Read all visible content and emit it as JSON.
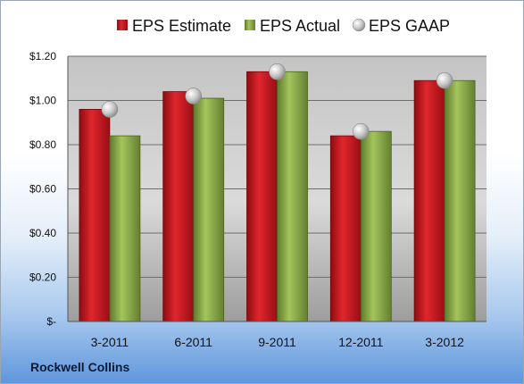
{
  "company": "Rockwell Collins",
  "colors": {
    "estimate": "#c8141c",
    "actual": "#8aac46",
    "gaap": "#c8c8c8"
  },
  "chart_data": {
    "type": "bar",
    "categories": [
      "3-2011",
      "6-2011",
      "9-2011",
      "12-2011",
      "3-2012"
    ],
    "series": [
      {
        "name": "EPS Estimate",
        "type": "bar",
        "values": [
          0.96,
          1.04,
          1.13,
          0.84,
          1.09
        ]
      },
      {
        "name": "EPS Actual",
        "type": "bar",
        "values": [
          0.84,
          1.01,
          1.13,
          0.86,
          1.09
        ]
      },
      {
        "name": "EPS GAAP",
        "type": "scatter",
        "values": [
          0.96,
          1.02,
          1.13,
          0.86,
          1.09
        ]
      }
    ],
    "ylim": [
      0,
      1.2
    ],
    "yticks": [
      0,
      0.2,
      0.4,
      0.6,
      0.8,
      1.0,
      1.2
    ],
    "ytick_labels": [
      "$-",
      "$0.20",
      "$0.40",
      "$0.60",
      "$0.80",
      "$1.00",
      "$1.20"
    ],
    "grid": true,
    "legend": "top"
  }
}
